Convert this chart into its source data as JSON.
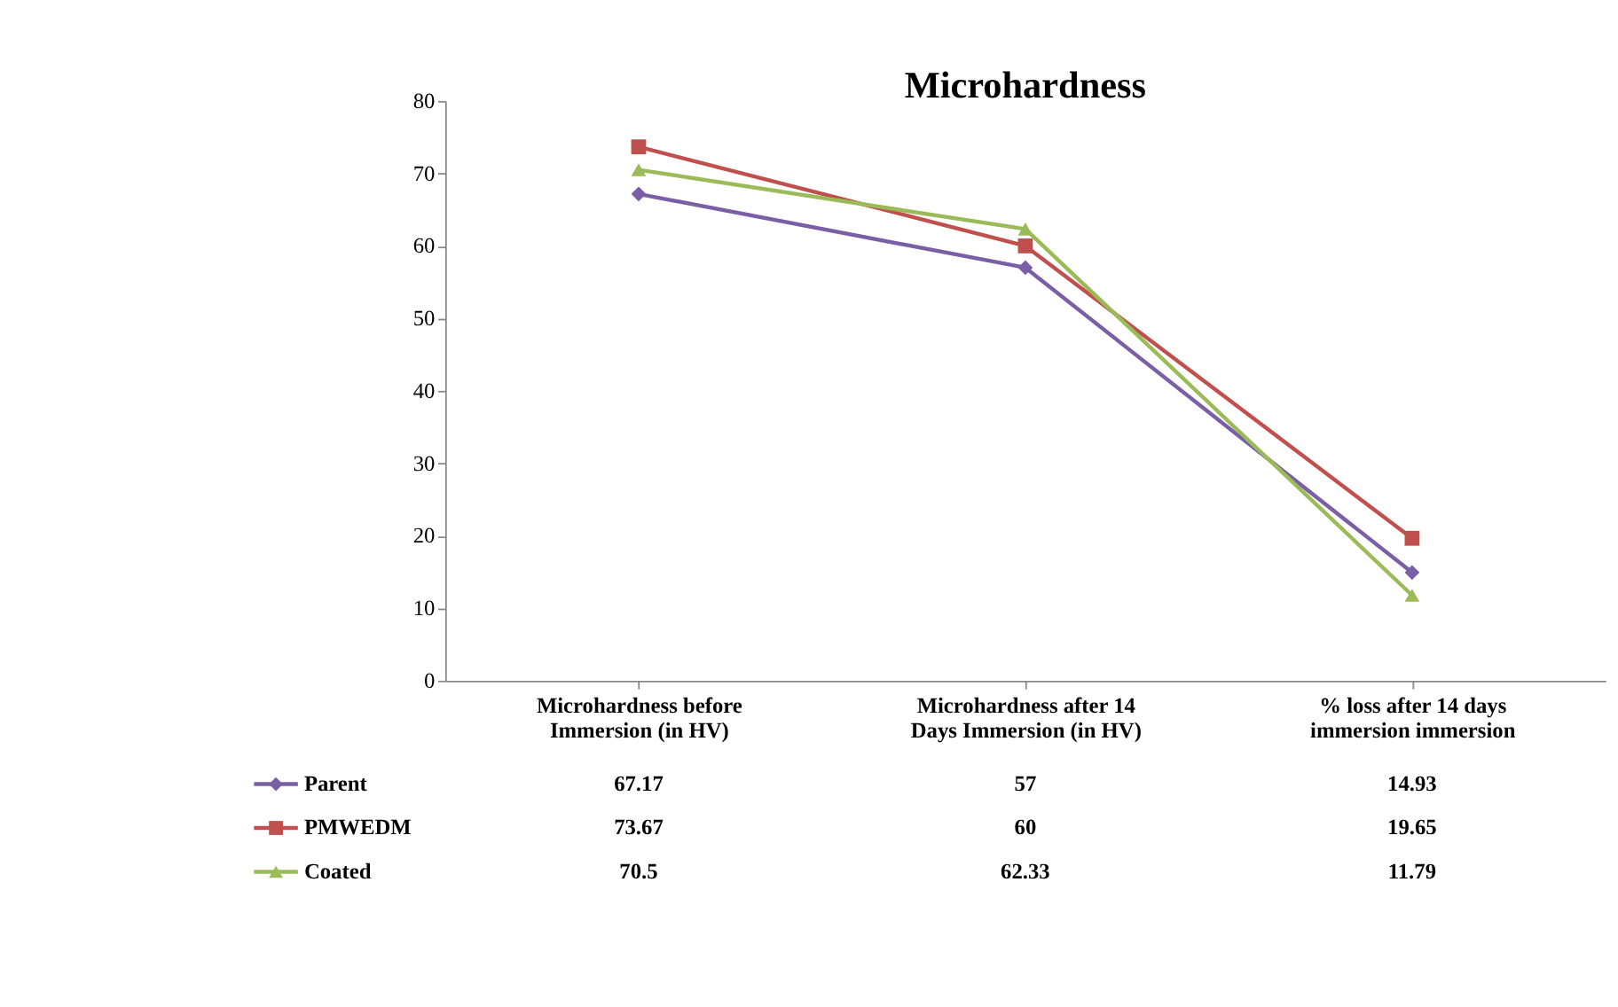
{
  "chart_data": {
    "type": "line",
    "title": "Microhardness",
    "categories": [
      "Microhardness before Immersion (in HV)",
      "Microhardness  after 14 Days Immersion (in HV)",
      "% loss after 14 days immersion immersion"
    ],
    "series": [
      {
        "name": "Parent",
        "color": "#7b5fa6",
        "marker": "diamond",
        "values": [
          67.17,
          57,
          14.93
        ]
      },
      {
        "name": "PMWEDM",
        "color": "#c0504d",
        "marker": "square",
        "values": [
          73.67,
          60,
          19.65
        ]
      },
      {
        "name": "Coated",
        "color": "#9bbb59",
        "marker": "triangle",
        "values": [
          70.5,
          62.33,
          11.79
        ]
      }
    ],
    "ylim": [
      0,
      80
    ],
    "yticks": [
      0,
      10,
      20,
      30,
      40,
      50,
      60,
      70,
      80
    ],
    "grid": false,
    "data_labels": true,
    "legend": "bottom left"
  }
}
